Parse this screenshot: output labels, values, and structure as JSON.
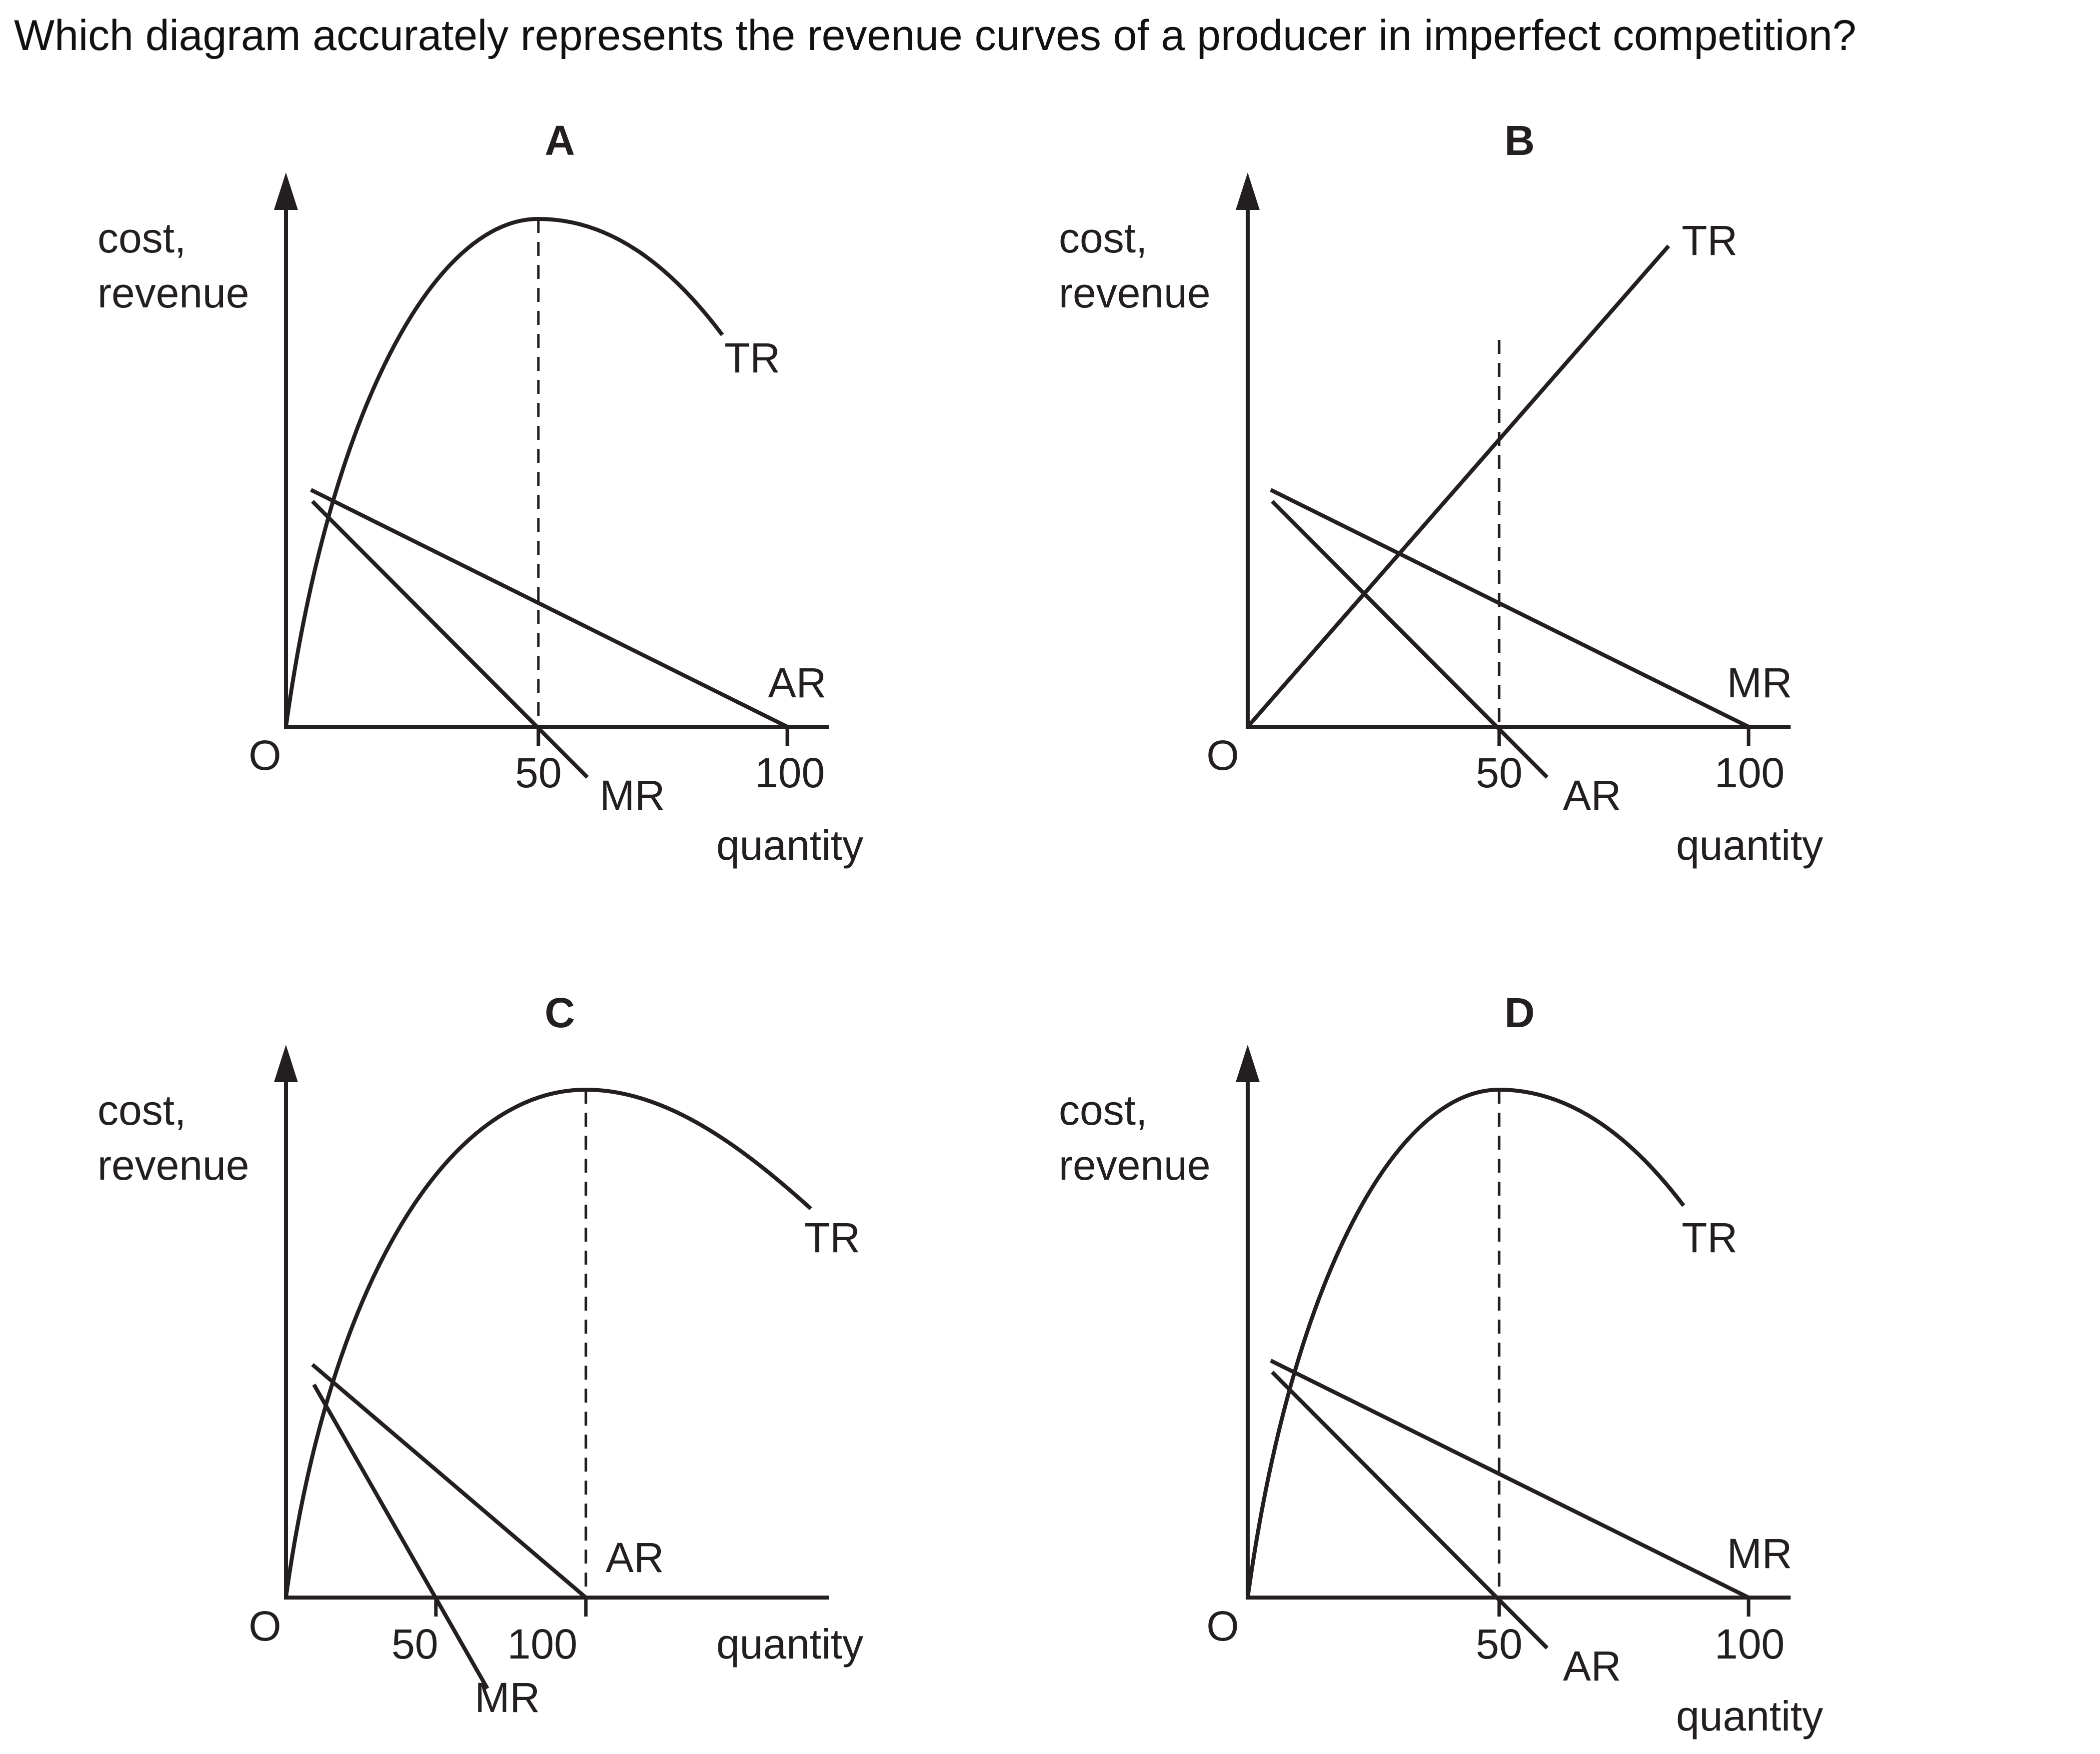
{
  "question": "Which diagram accurately represents the revenue curves of a producer in imperfect competition?",
  "panels": [
    {
      "letter": "A",
      "y_axis_label_line1": "cost,",
      "y_axis_label_line2": "revenue",
      "x_axis_label": "quantity",
      "origin_label": "O",
      "tick_labels": [
        "50",
        "100"
      ],
      "curve_labels": {
        "tr": "TR",
        "straight_flat": "AR",
        "straight_steep": "MR"
      }
    },
    {
      "letter": "B",
      "y_axis_label_line1": "cost,",
      "y_axis_label_line2": "revenue",
      "x_axis_label": "quantity",
      "origin_label": "O",
      "tick_labels": [
        "50",
        "100"
      ],
      "curve_labels": {
        "tr": "TR",
        "straight_flat": "MR",
        "straight_steep": "AR"
      }
    },
    {
      "letter": "C",
      "y_axis_label_line1": "cost,",
      "y_axis_label_line2": "revenue",
      "x_axis_label": "quantity",
      "origin_label": "O",
      "tick_labels": [
        "50",
        "100"
      ],
      "curve_labels": {
        "tr": "TR",
        "straight_flat": "AR",
        "straight_steep": "MR"
      }
    },
    {
      "letter": "D",
      "y_axis_label_line1": "cost,",
      "y_axis_label_line2": "revenue",
      "x_axis_label": "quantity",
      "origin_label": "O",
      "tick_labels": [
        "50",
        "100"
      ],
      "curve_labels": {
        "tr": "TR",
        "straight_flat": "MR",
        "straight_steep": "AR"
      }
    }
  ],
  "colors": {
    "ink": "#231f20",
    "background": "#ffffff"
  }
}
